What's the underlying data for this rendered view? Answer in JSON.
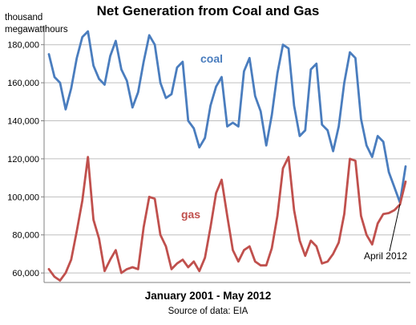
{
  "chart_data": {
    "type": "line",
    "title": "Net Generation from Coal and Gas",
    "ylabel_line1": "thousand",
    "ylabel_line2": "megawatthours",
    "xlabel": "January 2001 - May 2012",
    "source": "Source of data: EIA",
    "ylim": [
      55000,
      190000
    ],
    "yticks": [
      60000,
      80000,
      100000,
      120000,
      140000,
      160000,
      180000
    ],
    "ytick_labels": [
      "60,000",
      "80,000",
      "100,000",
      "120,000",
      "140,000",
      "160,000",
      "180,000"
    ],
    "grid": true,
    "start_month": "January 2001",
    "end_month": "May 2012",
    "series": [
      {
        "name": "coal",
        "color": "#4a7dbe",
        "values": [
          175000,
          163000,
          160000,
          146000,
          157000,
          173000,
          184000,
          187000,
          169000,
          162000,
          159000,
          174000,
          182000,
          167000,
          161000,
          147000,
          155000,
          171000,
          185000,
          180000,
          160000,
          152000,
          154000,
          168000,
          171000,
          140000,
          136000,
          126000,
          131000,
          148000,
          158000,
          163000,
          137000,
          139000,
          137000,
          166000,
          173000,
          153000,
          145000,
          127000,
          143000,
          165000,
          180000,
          178000,
          148000,
          132000,
          135000,
          167000,
          170000,
          138000,
          135000,
          124000,
          137000,
          160000,
          176000,
          173000,
          141000,
          127000,
          121000,
          132000,
          129000,
          113000,
          105000,
          97000,
          116000
        ]
      },
      {
        "name": "gas",
        "color": "#c0504d",
        "values": [
          62000,
          58000,
          56000,
          60000,
          67000,
          82000,
          98000,
          121000,
          88000,
          78000,
          61000,
          67000,
          72000,
          60000,
          62000,
          63000,
          62000,
          84000,
          100000,
          99000,
          80000,
          74000,
          62000,
          65000,
          67000,
          63000,
          66000,
          61000,
          68000,
          84000,
          102000,
          109000,
          90000,
          72000,
          66000,
          72000,
          74000,
          66000,
          64000,
          64000,
          73000,
          90000,
          115000,
          121000,
          93000,
          77000,
          69000,
          77000,
          74000,
          65000,
          66000,
          70000,
          76000,
          91000,
          120000,
          119000,
          90000,
          80000,
          75000,
          86000,
          91000,
          91500,
          93000,
          96000,
          108000
        ]
      }
    ],
    "annotations": [
      {
        "text": "April 2012",
        "series": "coal",
        "index": 135
      }
    ]
  }
}
